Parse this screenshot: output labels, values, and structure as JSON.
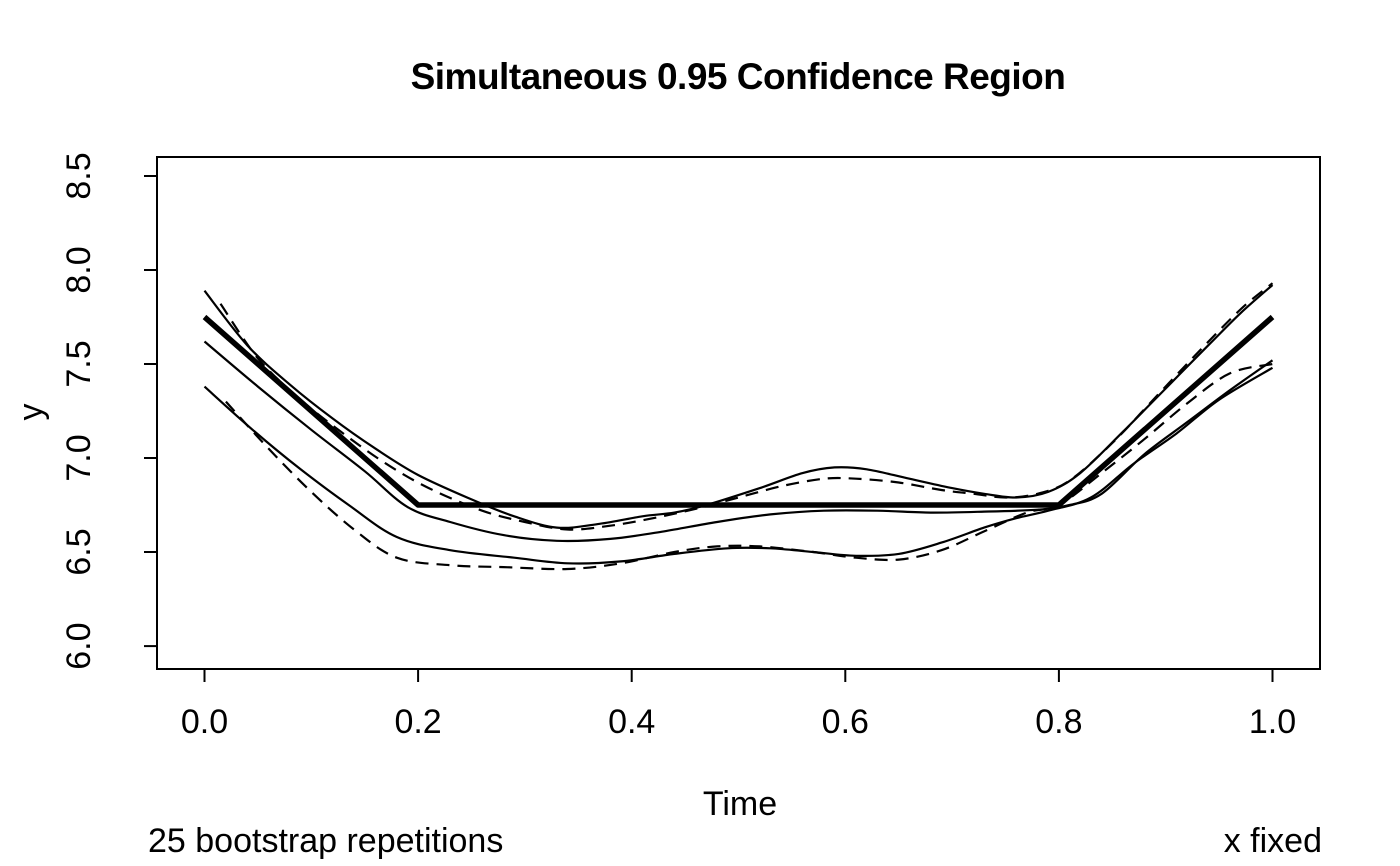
{
  "figure": {
    "background": "#ffffff",
    "foreground": "#000000"
  },
  "chart_data": {
    "type": "line",
    "title": "Simultaneous 0.95 Confidence Region",
    "xlabel": "Time",
    "ylabel": "y",
    "footnote_left": "25 bootstrap repetitions",
    "footnote_right": "x fixed",
    "grid": false,
    "legend": "none",
    "axis_color": "#000000",
    "line_color": "#000000",
    "xlim": [
      -0.0445,
      1.0445
    ],
    "ylim": [
      5.878,
      8.601
    ],
    "x_ticks": [
      {
        "value": 0.0,
        "label": "0.0"
      },
      {
        "value": 0.2,
        "label": "0.2"
      },
      {
        "value": 0.4,
        "label": "0.4"
      },
      {
        "value": 0.6,
        "label": "0.6"
      },
      {
        "value": 0.8,
        "label": "0.8"
      },
      {
        "value": 1.0,
        "label": "1.0"
      }
    ],
    "y_ticks": [
      {
        "value": 6.0,
        "label": "6.0"
      },
      {
        "value": 6.5,
        "label": "6.5"
      },
      {
        "value": 7.0,
        "label": "7.0"
      },
      {
        "value": 7.5,
        "label": "7.5"
      },
      {
        "value": 8.0,
        "label": "8.0"
      },
      {
        "value": 8.5,
        "label": "8.5"
      }
    ],
    "series": [
      {
        "name": "true-curve-thick",
        "line": "solid",
        "thickness": "thick",
        "interpolation": "linear",
        "points": [
          [
            0,
            7.75
          ],
          [
            0.2,
            6.75
          ],
          [
            0.8,
            6.75
          ],
          [
            1.0,
            7.75
          ]
        ]
      },
      {
        "name": "smooth-estimate",
        "line": "solid",
        "thickness": "thin",
        "interpolation": "smooth",
        "points": [
          [
            0,
            7.62
          ],
          [
            0.05,
            7.38
          ],
          [
            0.1,
            7.15
          ],
          [
            0.15,
            6.93
          ],
          [
            0.19,
            6.74
          ],
          [
            0.23,
            6.66
          ],
          [
            0.28,
            6.59
          ],
          [
            0.33,
            6.56
          ],
          [
            0.38,
            6.57
          ],
          [
            0.43,
            6.61
          ],
          [
            0.48,
            6.66
          ],
          [
            0.53,
            6.7
          ],
          [
            0.58,
            6.72
          ],
          [
            0.63,
            6.72
          ],
          [
            0.68,
            6.71
          ],
          [
            0.73,
            6.715
          ],
          [
            0.78,
            6.725
          ],
          [
            0.81,
            6.75
          ],
          [
            0.84,
            6.81
          ],
          [
            0.88,
            7.02
          ],
          [
            0.92,
            7.19
          ],
          [
            0.96,
            7.36
          ],
          [
            1.0,
            7.52
          ]
        ]
      },
      {
        "name": "upper-band-solid",
        "line": "solid",
        "thickness": "thin",
        "interpolation": "smooth",
        "points": [
          [
            0,
            7.89
          ],
          [
            0.04,
            7.6
          ],
          [
            0.08,
            7.39
          ],
          [
            0.12,
            7.21
          ],
          [
            0.16,
            7.05
          ],
          [
            0.2,
            6.91
          ],
          [
            0.25,
            6.78
          ],
          [
            0.29,
            6.69
          ],
          [
            0.33,
            6.63
          ],
          [
            0.37,
            6.65
          ],
          [
            0.41,
            6.69
          ],
          [
            0.44,
            6.71
          ],
          [
            0.47,
            6.75
          ],
          [
            0.52,
            6.84
          ],
          [
            0.56,
            6.92
          ],
          [
            0.59,
            6.95
          ],
          [
            0.62,
            6.94
          ],
          [
            0.66,
            6.89
          ],
          [
            0.7,
            6.84
          ],
          [
            0.73,
            6.81
          ],
          [
            0.76,
            6.79
          ],
          [
            0.79,
            6.82
          ],
          [
            0.82,
            6.92
          ],
          [
            0.86,
            7.14
          ],
          [
            0.9,
            7.37
          ],
          [
            0.94,
            7.6
          ],
          [
            0.97,
            7.77
          ],
          [
            1.0,
            7.92
          ]
        ]
      },
      {
        "name": "lower-band-solid",
        "line": "solid",
        "thickness": "thin",
        "interpolation": "smooth",
        "points": [
          [
            0,
            7.38
          ],
          [
            0.045,
            7.15
          ],
          [
            0.09,
            6.94
          ],
          [
            0.135,
            6.75
          ],
          [
            0.18,
            6.58
          ],
          [
            0.23,
            6.51
          ],
          [
            0.29,
            6.47
          ],
          [
            0.34,
            6.44
          ],
          [
            0.39,
            6.45
          ],
          [
            0.44,
            6.49
          ],
          [
            0.49,
            6.52
          ],
          [
            0.53,
            6.52
          ],
          [
            0.57,
            6.5
          ],
          [
            0.61,
            6.48
          ],
          [
            0.65,
            6.49
          ],
          [
            0.69,
            6.55
          ],
          [
            0.73,
            6.63
          ],
          [
            0.76,
            6.68
          ],
          [
            0.79,
            6.72
          ],
          [
            0.83,
            6.79
          ],
          [
            0.87,
            6.97
          ],
          [
            0.91,
            7.13
          ],
          [
            0.95,
            7.31
          ],
          [
            1.0,
            7.48
          ]
        ]
      },
      {
        "name": "upper-band-dashed",
        "line": "dashed",
        "thickness": "thin",
        "interpolation": "smooth",
        "points": [
          [
            0.015,
            7.82
          ],
          [
            0.05,
            7.53
          ],
          [
            0.09,
            7.31
          ],
          [
            0.13,
            7.13
          ],
          [
            0.17,
            6.97
          ],
          [
            0.21,
            6.84
          ],
          [
            0.26,
            6.72
          ],
          [
            0.3,
            6.66
          ],
          [
            0.34,
            6.62
          ],
          [
            0.38,
            6.64
          ],
          [
            0.42,
            6.68
          ],
          [
            0.46,
            6.73
          ],
          [
            0.5,
            6.79
          ],
          [
            0.54,
            6.85
          ],
          [
            0.58,
            6.89
          ],
          [
            0.61,
            6.89
          ],
          [
            0.65,
            6.87
          ],
          [
            0.69,
            6.83
          ],
          [
            0.72,
            6.81
          ],
          [
            0.75,
            6.79
          ],
          [
            0.78,
            6.81
          ],
          [
            0.81,
            6.88
          ],
          [
            0.85,
            7.08
          ],
          [
            0.89,
            7.32
          ],
          [
            0.93,
            7.56
          ],
          [
            0.97,
            7.79
          ],
          [
            1.0,
            7.93
          ]
        ]
      },
      {
        "name": "lower-band-dashed",
        "line": "dashed",
        "thickness": "thin",
        "interpolation": "smooth",
        "points": [
          [
            0.02,
            7.3
          ],
          [
            0.06,
            7.05
          ],
          [
            0.1,
            6.82
          ],
          [
            0.14,
            6.62
          ],
          [
            0.18,
            6.47
          ],
          [
            0.23,
            6.43
          ],
          [
            0.28,
            6.42
          ],
          [
            0.34,
            6.41
          ],
          [
            0.39,
            6.44
          ],
          [
            0.44,
            6.5
          ],
          [
            0.48,
            6.53
          ],
          [
            0.52,
            6.53
          ],
          [
            0.57,
            6.5
          ],
          [
            0.61,
            6.47
          ],
          [
            0.65,
            6.46
          ],
          [
            0.69,
            6.51
          ],
          [
            0.73,
            6.61
          ],
          [
            0.77,
            6.71
          ],
          [
            0.8,
            6.75
          ],
          [
            0.84,
            6.92
          ],
          [
            0.88,
            7.1
          ],
          [
            0.92,
            7.29
          ],
          [
            0.96,
            7.45
          ],
          [
            1.0,
            7.5
          ]
        ]
      }
    ]
  }
}
